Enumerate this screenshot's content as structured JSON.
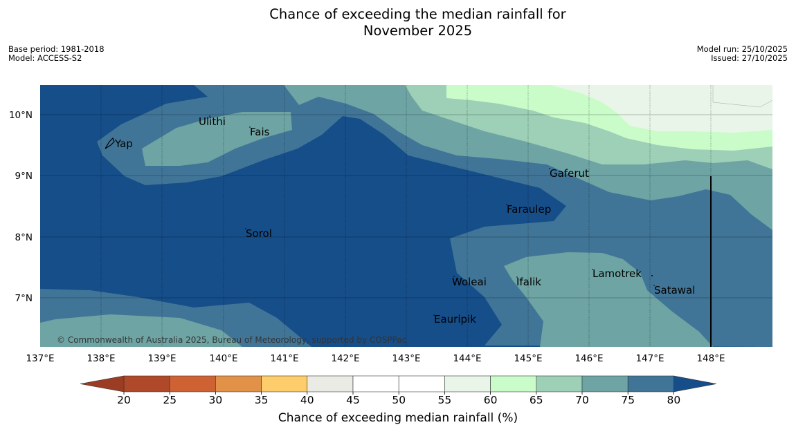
{
  "title_line1": "Chance of exceeding the median rainfall for",
  "title_line2": "November 2025",
  "meta_left": {
    "line1": "Base period: 1981-2018",
    "line2": "Model: ACCESS-S2"
  },
  "meta_right": {
    "line1": "Model run: 25/10/2025",
    "line2": "Issued: 27/10/2025"
  },
  "copyright": "© Commonwealth of Australia 2025, Bureau of Meteorology, supported by COSPPac",
  "places": [
    "Yap",
    "Ulithi",
    "Fais",
    "Gaferut",
    "Faraulep",
    "Sorol",
    "Woleai",
    "Ifalik",
    "Lamotrek",
    "Satawal",
    "Eauripik"
  ],
  "lon_ticks": [
    "137°E",
    "138°E",
    "139°E",
    "140°E",
    "141°E",
    "142°E",
    "143°E",
    "144°E",
    "145°E",
    "146°E",
    "147°E",
    "148°E"
  ],
  "lat_ticks": [
    "10°N",
    "9°N",
    "8°N",
    "7°N"
  ],
  "colorbar": {
    "title": "Chance of exceeding median rainfall (%)",
    "ticks": [
      "20",
      "25",
      "30",
      "35",
      "40",
      "45",
      "50",
      "55",
      "60",
      "65",
      "70",
      "75",
      "80"
    ],
    "colors": [
      "#b0482a",
      "#cf6232",
      "#e29248",
      "#fccd6a",
      "#ebebe6",
      "#ffffff",
      "#ffffff",
      "#eaf5ea",
      "#c9fcc9",
      "#9dd0b6",
      "#6ea4a4",
      "#417597"
    ],
    "under_color": "#9c3c23",
    "over_color": "#164e8a"
  },
  "legend_colors": {
    "c80": "#164e8a",
    "c75": "#417597",
    "c70": "#6ea4a4",
    "c65": "#9dd0b6",
    "c60": "#c9fcc9",
    "c55": "#eaf5ea"
  }
}
